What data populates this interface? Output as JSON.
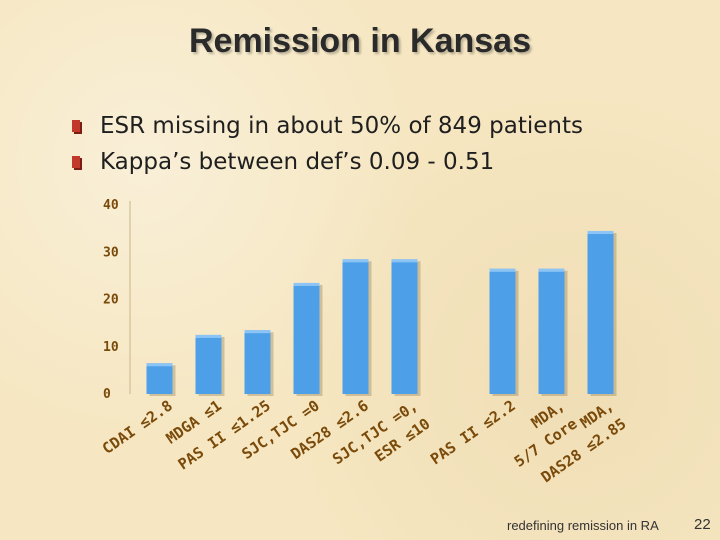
{
  "slide": {
    "title": "Remission in Kansas",
    "bullets": [
      "ESR missing in about 50% of 849 patients",
      "Kappa’s between def’s 0.09 - 0.51"
    ],
    "footer": "redefining remission in RA",
    "page_number": "22"
  },
  "colors": {
    "bar": "#4d9fe8",
    "axis_text": "#7a4a0a",
    "bullet": "#c0392b"
  },
  "chart_data": {
    "type": "bar",
    "title": "",
    "xlabel": "",
    "ylabel": "",
    "ylim": [
      0,
      40
    ],
    "yticks": [
      0,
      10,
      20,
      30,
      40
    ],
    "categories": [
      "CDAI ≤2.8",
      "MDGA ≤1",
      "PAS II ≤1.25",
      "SJC,TJC =0",
      "DAS28 ≤2.6",
      "SJC,TJC =0, ESR ≤10",
      "",
      "PAS II ≤2.2",
      "MDA, 5/7 Core",
      "MDA, DAS28 ≤2.85"
    ],
    "values": [
      6.5,
      12.5,
      13.5,
      23.5,
      28.5,
      28.5,
      null,
      26.5,
      26.5,
      34.5
    ]
  }
}
